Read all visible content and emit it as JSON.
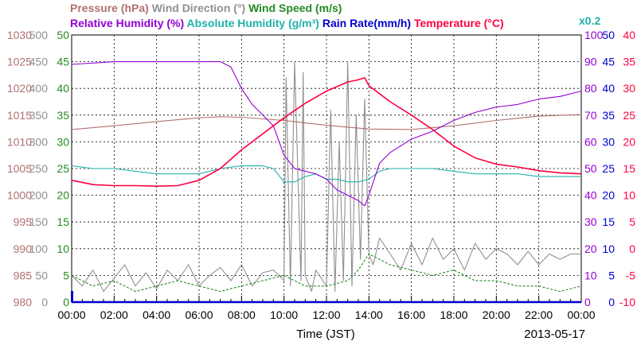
{
  "chart_data": {
    "type": "line",
    "date_label": "2013-05-17",
    "xlabel": "Time (JST)",
    "xlim": [
      "00:00",
      "24:00"
    ],
    "x_tick_labels": [
      "00:00",
      "02:00",
      "04:00",
      "06:00",
      "08:00",
      "10:00",
      "12:00",
      "14:00",
      "16:00",
      "18:00",
      "20:00",
      "22:00",
      "00:00"
    ],
    "grid": true,
    "legend_rows": [
      [
        {
          "label": "Pressure (hPa)",
          "color": "#b07070"
        },
        {
          "label": "Wind Direction (°)",
          "color": "#909090"
        },
        {
          "label": "Wind Speed (m/s)",
          "color": "#228B22"
        }
      ],
      [
        {
          "label": "Relative Humidity (%)",
          "color": "#9400D3"
        },
        {
          "label": "Absolute Humidity (g/m³)",
          "color": "#20B2AA"
        },
        {
          "label": "Rain Rate(mm/h)",
          "color": "#0000CD"
        },
        {
          "label": "Temperature (°C)",
          "color": "#FF0040"
        }
      ]
    ],
    "scale_note": "x0.2",
    "axes": [
      {
        "name": "Pressure (hPa)",
        "side": "left",
        "color": "#b07070",
        "ylim": [
          980,
          1030
        ],
        "ticks": [
          "1030",
          "1025",
          "1020",
          "1015",
          "1010",
          "1005",
          "1000",
          "995",
          "990",
          "985",
          "980"
        ]
      },
      {
        "name": "Wind Direction (°)",
        "side": "left",
        "color": "#909090",
        "ylim": [
          0,
          500
        ],
        "ticks": [
          "500",
          "450",
          "400",
          "350",
          "300",
          "250",
          "200",
          "150",
          "100",
          "50",
          "0"
        ]
      },
      {
        "name": "Wind Speed (m/s)",
        "side": "left",
        "color": "#228B22",
        "ylim": [
          0,
          50
        ],
        "ticks": [
          "50",
          "45",
          "40",
          "35",
          "30",
          "25",
          "20",
          "15",
          "10",
          "5",
          "0"
        ]
      },
      {
        "name": "Relative Humidity (%)",
        "side": "right",
        "color": "#9400D3",
        "ylim": [
          0,
          100
        ],
        "ticks": [
          "100",
          "90",
          "80",
          "70",
          "60",
          "50",
          "40",
          "30",
          "20",
          "10",
          "0"
        ]
      },
      {
        "name": "Rain Rate (mm/h)",
        "side": "right",
        "color": "#0000CD",
        "ylim": [
          0,
          50
        ],
        "ticks": [
          "50",
          "45",
          "40",
          "35",
          "30",
          "25",
          "20",
          "15",
          "10",
          "5",
          "0"
        ]
      },
      {
        "name": "Temperature (°C)",
        "side": "right",
        "color": "#FF0040",
        "ylim": [
          -10,
          40
        ],
        "ticks": [
          "40",
          "35",
          "30",
          "25",
          "20",
          "15",
          "10",
          "5",
          "0",
          "-5",
          "-10"
        ]
      }
    ],
    "series": [
      {
        "name": "Pressure (hPa)",
        "color": "#b07070",
        "axis": "Pressure (hPa)",
        "hours": [
          0,
          2,
          4,
          6,
          7,
          8,
          10,
          12,
          14,
          16,
          18,
          20,
          22,
          24
        ],
        "values": [
          1012.3,
          1013,
          1013.8,
          1014.5,
          1014.7,
          1014.6,
          1014,
          1013.1,
          1012.4,
          1012.3,
          1013,
          1014,
          1014.8,
          1015.1
        ]
      },
      {
        "name": "Relative Humidity (%)",
        "color": "#9400D3",
        "axis": "Relative Humidity (%)",
        "hours": [
          0,
          2,
          4,
          6,
          7,
          7.5,
          8,
          8.5,
          9,
          9.5,
          10,
          10.5,
          11,
          11.5,
          12,
          12.5,
          13,
          13.5,
          13.8,
          14,
          14.5,
          15,
          16,
          17,
          18,
          19,
          20,
          21,
          22,
          23,
          24
        ],
        "values": [
          89,
          90,
          90,
          90,
          90,
          88,
          80,
          74,
          70,
          66,
          55,
          50,
          49,
          48,
          46,
          42,
          40,
          38,
          36,
          40,
          52,
          56,
          61,
          64,
          68,
          71,
          73,
          74,
          76,
          77,
          79
        ]
      },
      {
        "name": "Absolute Humidity (g/m³)",
        "color": "#20B2AA",
        "axis": "Relative Humidity (%)",
        "hours": [
          0,
          1,
          2,
          3,
          4,
          5,
          6,
          7,
          8,
          9,
          9.5,
          10,
          10.5,
          11,
          11.5,
          12,
          12.5,
          13,
          13.5,
          14,
          14.5,
          15,
          16,
          17,
          18,
          19,
          20,
          21,
          22,
          23,
          24
        ],
        "values": [
          51,
          50,
          50,
          49,
          48,
          48,
          48,
          50,
          51,
          51,
          50,
          45,
          45,
          47,
          48,
          46,
          46,
          45,
          45,
          46,
          49,
          50,
          50,
          50,
          49,
          48,
          48,
          48,
          47,
          47,
          47
        ]
      },
      {
        "name": "Temperature (°C)",
        "color": "#FF0040",
        "axis": "Temperature (°C)",
        "hours": [
          0,
          1,
          2,
          3,
          4,
          5,
          6,
          7,
          8,
          9,
          10,
          11,
          12,
          13,
          13.5,
          13.8,
          14,
          15,
          16,
          17,
          18,
          19,
          20,
          21,
          22,
          23,
          24
        ],
        "values": [
          12.8,
          12,
          11.8,
          11.8,
          11.7,
          11.8,
          12.8,
          15,
          18.5,
          21.5,
          24.5,
          27.2,
          29.5,
          31.2,
          31.6,
          32,
          30.5,
          27.5,
          25,
          22.3,
          19.2,
          17,
          15.8,
          15.3,
          14.6,
          14.2,
          14
        ]
      },
      {
        "name": "Wind Direction (°)",
        "color": "#909090",
        "axis": "Wind Direction (°)",
        "hours": [
          0,
          0.5,
          1,
          1.5,
          2,
          2.5,
          3,
          3.5,
          4,
          4.5,
          5,
          5.5,
          6,
          6.5,
          7,
          7.5,
          8,
          8.5,
          9,
          9.5,
          10,
          10.1,
          10.3,
          10.5,
          10.8,
          10.9,
          11,
          11.3,
          11.5,
          12,
          12.2,
          12.4,
          12.6,
          12.8,
          13,
          13.2,
          13.4,
          13.6,
          13.8,
          14,
          14.2,
          14.5,
          15,
          15.5,
          16,
          16.5,
          17,
          17.5,
          18,
          18.5,
          19,
          19.5,
          20,
          20.5,
          21,
          21.5,
          22,
          22.5,
          23,
          23.5,
          24
        ],
        "values": [
          50,
          30,
          60,
          20,
          45,
          70,
          30,
          55,
          25,
          60,
          40,
          70,
          30,
          50,
          65,
          40,
          70,
          30,
          55,
          60,
          40,
          420,
          30,
          450,
          40,
          430,
          50,
          20,
          60,
          30,
          360,
          20,
          300,
          40,
          450,
          30,
          350,
          80,
          380,
          90,
          70,
          120,
          90,
          60,
          110,
          70,
          120,
          80,
          100,
          60,
          110,
          80,
          100,
          90,
          70,
          95,
          70,
          90,
          80,
          90,
          90
        ]
      },
      {
        "name": "Wind Speed (m/s)",
        "color": "#228B22",
        "axis": "Wind Speed (m/s)",
        "hours": [
          0,
          1,
          2,
          3,
          4,
          5,
          6,
          7,
          8,
          9,
          10,
          11,
          12,
          13,
          13.5,
          14,
          15,
          16,
          17,
          18,
          19,
          20,
          21,
          22,
          23,
          24
        ],
        "values": [
          5,
          3,
          4,
          2,
          3,
          4,
          3,
          2,
          3,
          4,
          5,
          3,
          3,
          4,
          6,
          9,
          7,
          6,
          5,
          6,
          4,
          4,
          3,
          3,
          2,
          3
        ]
      },
      {
        "name": "Rain Rate (mm/h)",
        "color": "#0000CD",
        "axis": "Rain Rate (mm/h)",
        "hours": [
          0,
          24
        ],
        "values": [
          0,
          0
        ]
      }
    ]
  }
}
